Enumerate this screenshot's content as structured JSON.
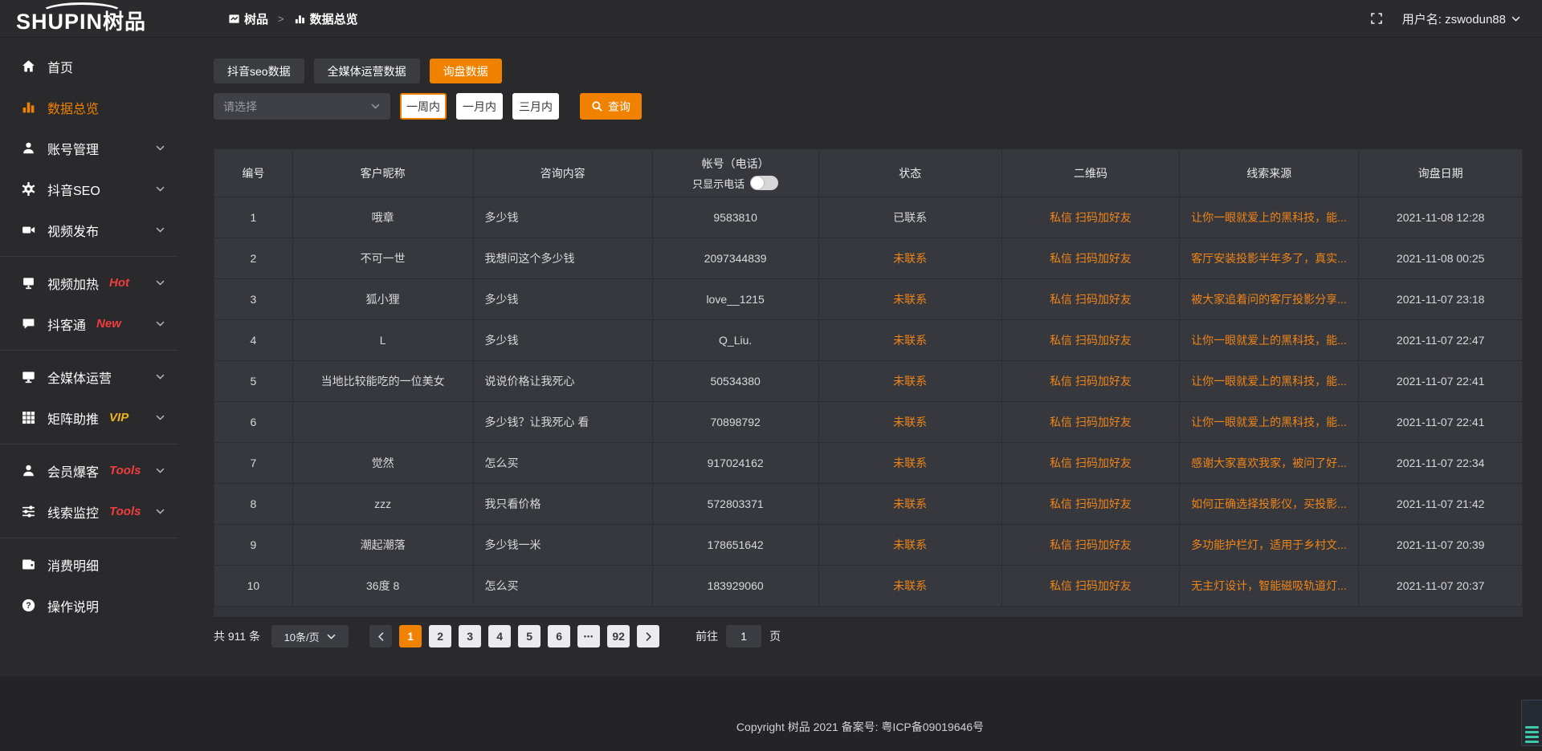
{
  "colors": {
    "accent": "#f08200",
    "link": "#ef8518",
    "badge_red": "#f23d3d",
    "badge_vip": "#f0b41e"
  },
  "header": {
    "logo_en": "SHUPIN",
    "logo_cn": "树品",
    "breadcrumb_root": "树品",
    "breadcrumb_sep": ">",
    "breadcrumb_current": "数据总览",
    "username": "用户名: zswodun88"
  },
  "sidebar": {
    "items": [
      {
        "key": "home",
        "label": "首页",
        "icon": "home",
        "active": false,
        "badge": null,
        "chevron": false,
        "divider_after": false
      },
      {
        "key": "data-overview",
        "label": "数据总览",
        "icon": "chart-bars",
        "active": true,
        "badge": null,
        "chevron": false,
        "divider_after": false
      },
      {
        "key": "account-management",
        "label": "账号管理",
        "icon": "user",
        "active": false,
        "badge": null,
        "chevron": true,
        "divider_after": false
      },
      {
        "key": "douyin-seo",
        "label": "抖音SEO",
        "icon": "gear",
        "active": false,
        "badge": null,
        "chevron": true,
        "divider_after": false
      },
      {
        "key": "video-publish",
        "label": "视频发布",
        "icon": "video",
        "active": false,
        "badge": null,
        "chevron": true,
        "divider_after": true
      },
      {
        "key": "video-heating",
        "label": "视频加热",
        "icon": "screen",
        "active": false,
        "badge": "Hot",
        "badge_color": "badge_red",
        "chevron": true,
        "divider_after": false
      },
      {
        "key": "douketong",
        "label": "抖客通",
        "icon": "chat",
        "active": false,
        "badge": "New",
        "badge_color": "badge_red",
        "chevron": true,
        "divider_after": true
      },
      {
        "key": "omnimedia-operation",
        "label": "全媒体运营",
        "icon": "monitor",
        "active": false,
        "badge": null,
        "chevron": true,
        "divider_after": false
      },
      {
        "key": "matrix-boost",
        "label": "矩阵助推",
        "icon": "grid",
        "active": false,
        "badge": "VIP",
        "badge_color": "badge_vip",
        "chevron": true,
        "divider_after": true
      },
      {
        "key": "member-baoke",
        "label": "会员爆客",
        "icon": "person",
        "active": false,
        "badge": "Tools",
        "badge_color": "badge_red",
        "chevron": true,
        "divider_after": false
      },
      {
        "key": "lead-monitoring",
        "label": "线索监控",
        "icon": "sliders",
        "active": false,
        "badge": "Tools",
        "badge_color": "badge_red",
        "chevron": true,
        "divider_after": true
      },
      {
        "key": "consumption-details",
        "label": "消费明细",
        "icon": "wallet",
        "active": false,
        "badge": null,
        "chevron": false,
        "divider_after": false
      },
      {
        "key": "operation-guide",
        "label": "操作说明",
        "icon": "question",
        "active": false,
        "badge": null,
        "chevron": false,
        "divider_after": false
      }
    ]
  },
  "tabs": [
    {
      "key": "douyin-seo-data",
      "label": "抖音seo数据",
      "active": false
    },
    {
      "key": "omnimedia-data",
      "label": "全媒体运营数据",
      "active": false
    },
    {
      "key": "inquiry-data",
      "label": "询盘数据",
      "active": true
    }
  ],
  "filters": {
    "select_placeholder": "请选择",
    "periods": [
      {
        "key": "one-week",
        "label": "一周内",
        "active": true
      },
      {
        "key": "one-month",
        "label": "一月内",
        "active": false
      },
      {
        "key": "three-months",
        "label": "三月内",
        "active": false
      }
    ],
    "search_label": "查询"
  },
  "table": {
    "columns": [
      "编号",
      "客户昵称",
      "咨询内容",
      "帐号（电话）",
      "状态",
      "二维码",
      "线索来源",
      "询盘日期"
    ],
    "phone_toggle_label": "只显示电话",
    "phone_toggle_on": false,
    "rows": [
      {
        "id": "1",
        "nickname": "哦章",
        "content": "多少钱",
        "account": "9583810",
        "status": "已联系",
        "contacted": true,
        "qrcode": "私信 扫码加好友",
        "source": "让你一眼就爱上的黑科技，能...",
        "date": "2021-11-08 12:28"
      },
      {
        "id": "2",
        "nickname": "不可一世",
        "content": "我想问这个多少钱",
        "account": "2097344839",
        "status": "未联系",
        "contacted": false,
        "qrcode": "私信 扫码加好友",
        "source": "客厅安装投影半年多了，真实...",
        "date": "2021-11-08 00:25"
      },
      {
        "id": "3",
        "nickname": "狐小狸",
        "content": "多少钱",
        "account": "love__1215",
        "status": "未联系",
        "contacted": false,
        "qrcode": "私信 扫码加好友",
        "source": "被大家追着问的客厅投影分享...",
        "date": "2021-11-07 23:18"
      },
      {
        "id": "4",
        "nickname": "L",
        "content": "多少钱",
        "account": "Q_Liu.",
        "status": "未联系",
        "contacted": false,
        "qrcode": "私信 扫码加好友",
        "source": "让你一眼就爱上的黑科技，能...",
        "date": "2021-11-07 22:47"
      },
      {
        "id": "5",
        "nickname": "当地比较能吃的一位美女",
        "content": "说说价格让我死心",
        "account": "50534380",
        "status": "未联系",
        "contacted": false,
        "qrcode": "私信 扫码加好友",
        "source": "让你一眼就爱上的黑科技，能...",
        "date": "2021-11-07 22:41"
      },
      {
        "id": "6",
        "nickname": "",
        "content": "多少钱？让我死心 看",
        "account": "70898792",
        "status": "未联系",
        "contacted": false,
        "qrcode": "私信 扫码加好友",
        "source": "让你一眼就爱上的黑科技，能...",
        "date": "2021-11-07 22:41"
      },
      {
        "id": "7",
        "nickname": "觉然",
        "content": "怎么买",
        "account": "917024162",
        "status": "未联系",
        "contacted": false,
        "qrcode": "私信 扫码加好友",
        "source": "感谢大家喜欢我家，被问了好...",
        "date": "2021-11-07 22:34"
      },
      {
        "id": "8",
        "nickname": "zzz",
        "content": "我只看价格",
        "account": "572803371",
        "status": "未联系",
        "contacted": false,
        "qrcode": "私信 扫码加好友",
        "source": "如何正确选择投影仪，买投影...",
        "date": "2021-11-07 21:42"
      },
      {
        "id": "9",
        "nickname": "潮起潮落",
        "content": "多少钱一米",
        "account": "178651642",
        "status": "未联系",
        "contacted": false,
        "qrcode": "私信 扫码加好友",
        "source": "多功能护栏灯，适用于乡村文...",
        "date": "2021-11-07 20:39"
      },
      {
        "id": "10",
        "nickname": "36度 8",
        "content": "怎么买",
        "account": "183929060",
        "status": "未联系",
        "contacted": false,
        "qrcode": "私信 扫码加好友",
        "source": "无主灯设计，智能磁吸轨道灯...",
        "date": "2021-11-07 20:37"
      }
    ]
  },
  "pagination": {
    "total_label": "共 911 条",
    "page_size_label": "10条/页",
    "pages": [
      "1",
      "2",
      "3",
      "4",
      "5",
      "6",
      "•••",
      "92"
    ],
    "active_page": "1",
    "goto_label": "前往",
    "goto_value": "1",
    "goto_suffix": "页"
  },
  "footer": {
    "copyright": "Copyright 树品 2021 备案号: 粤ICP备09019646号"
  }
}
